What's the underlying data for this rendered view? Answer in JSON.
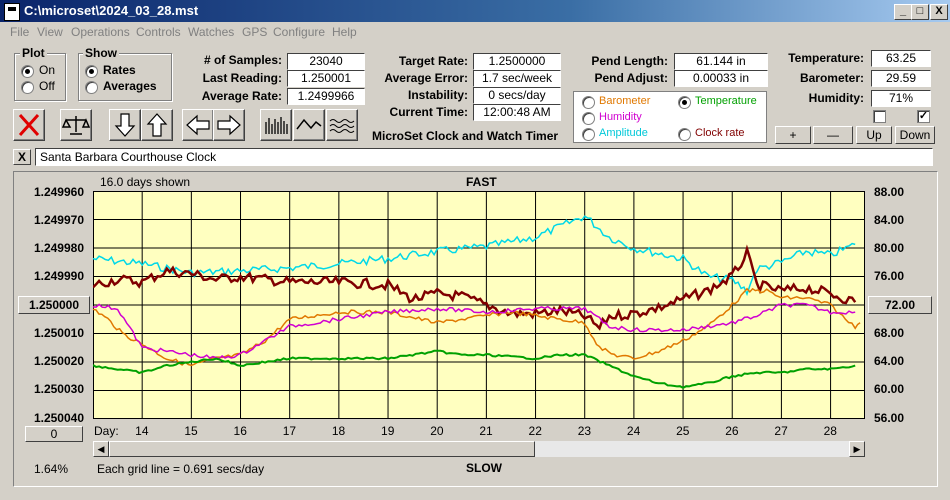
{
  "window": {
    "title": "C:\\microset\\2024_03_28.mst",
    "min": "_",
    "max": "□",
    "close": "X"
  },
  "menu": [
    "File",
    "View",
    "Operations",
    "Controls",
    "Watches",
    "GPS",
    "Configure",
    "Help"
  ],
  "plot_group": {
    "title": "Plot",
    "on": "On",
    "off": "Off",
    "selected": "On"
  },
  "show_group": {
    "title": "Show",
    "rates": "Rates",
    "averages": "Averages",
    "selected": "Rates"
  },
  "stats": {
    "samples_label": "# of Samples:",
    "samples": "23040",
    "last_label": "Last Reading:",
    "last": "1.250001",
    "avg_label": "Average Rate:",
    "avg": "1.2499966",
    "target_label": "Target Rate:",
    "target": "1.2500000",
    "avgerr_label": "Average Error:",
    "avgerr": "1.7 sec/week",
    "instab_label": "Instability:",
    "instab": "0 secs/day",
    "time_label": "Current Time:",
    "time": "12:00:48 AM",
    "pendlen_label": "Pend Length:",
    "pendlen": "61.144 in",
    "pendadj_label": "Pend Adjust:",
    "pendadj": "0.00033 in",
    "temp_label": "Temperature:",
    "temp": "63.25",
    "baro_label": "Barometer:",
    "baro": "29.59",
    "hum_label": "Humidity:",
    "hum": "71%"
  },
  "app_caption": "MicroSet Clock and Watch Timer",
  "legend": {
    "barometer": "Barometer",
    "temperature": "Temperature",
    "humidity": "Humidity",
    "amplitude": "Amplitude",
    "clockrate": "Clock rate",
    "selected": "Temperature",
    "colors": {
      "barometer": "#e07800",
      "temperature": "#00a000",
      "humidity": "#d000d0",
      "amplitude": "#00c8d8",
      "clockrate": "#800000"
    }
  },
  "small_buttons": {
    "plus": "+",
    "minus": "—",
    "up": "Up",
    "down": "Down"
  },
  "clock_name": "Santa Barbara Courthouse Clock",
  "close_x": "X",
  "chart_header": {
    "days_shown": "16.0 days shown",
    "fast": "FAST",
    "slow": "SLOW",
    "grid_note": "Each grid line = 0.691 secs/day",
    "percent": "1.64%",
    "day_label": "Day:",
    "zero_button": "0"
  },
  "chart_data": {
    "type": "line",
    "xlabel": "Day:",
    "x_ticks": [
      "14",
      "15",
      "16",
      "17",
      "18",
      "19",
      "20",
      "21",
      "22",
      "23",
      "24",
      "25",
      "26",
      "27",
      "28"
    ],
    "xlim": [
      13.0,
      28.7
    ],
    "y_left_ticks": [
      "1.249960",
      "1.249970",
      "1.249980",
      "1.249990",
      "1.250000",
      "1.250010",
      "1.250020",
      "1.250030",
      "1.250040"
    ],
    "y_left_selected": "1.250000",
    "ylim_left": [
      1.24996,
      1.25004
    ],
    "y_right_ticks": [
      "88.00",
      "84.00",
      "80.00",
      "76.00",
      "72.00",
      "68.00",
      "64.00",
      "60.00",
      "56.00"
    ],
    "y_right_selected": "72.00",
    "ylim_right": [
      56,
      88
    ],
    "series": [
      {
        "name": "Amplitude",
        "color": "#00d8e8",
        "x": [
          13,
          14,
          15,
          16,
          17,
          18,
          19,
          20,
          21,
          22,
          22.5,
          23,
          23.5,
          24,
          25,
          25.5,
          26,
          26.3,
          26.5,
          27,
          27.5,
          28,
          28.5
        ],
        "values": [
          78.5,
          77.8,
          76.5,
          76.8,
          77.2,
          77.8,
          78.5,
          79.5,
          80.2,
          81.5,
          83,
          84.5,
          81.5,
          80,
          78.5,
          76,
          75.5,
          74,
          77,
          78,
          79.5,
          79,
          80.5
        ]
      },
      {
        "name": "Clock rate",
        "color": "#800000",
        "x": [
          13,
          13.5,
          14,
          14.5,
          15,
          15.5,
          16,
          17,
          18,
          19,
          19.5,
          20,
          20.5,
          21,
          21.5,
          22,
          22.5,
          23,
          23.3,
          23.5,
          24,
          24.5,
          25,
          25.5,
          26,
          26.3,
          26.5,
          27,
          27.5,
          28,
          28.5
        ],
        "values": [
          1.249993,
          1.249991,
          1.249992,
          1.249988,
          1.249989,
          1.249991,
          1.24999,
          1.249992,
          1.249992,
          1.249993,
          1.249998,
          1.249996,
          1.249997,
          1.25,
          1.250003,
          1.250003,
          1.250002,
          1.250004,
          1.250008,
          1.250004,
          1.250003,
          1.250001,
          1.249998,
          1.249995,
          1.24999,
          1.249982,
          1.249993,
          1.249995,
          1.249994,
          1.249996,
          1.249999
        ]
      },
      {
        "name": "Barometer",
        "color": "#e07800",
        "x": [
          13,
          13.3,
          13.6,
          14,
          14.5,
          15,
          15.5,
          16,
          16.5,
          17,
          18,
          19,
          20,
          21,
          21.5,
          22,
          22.5,
          23,
          23.3,
          23.6,
          24,
          24.5,
          25,
          25.5,
          26,
          26.3,
          26.7,
          27,
          27.5,
          28,
          28.3,
          28.5,
          28.6
        ],
        "values": [
          71.5,
          70,
          68,
          66.5,
          64.5,
          63.5,
          64.5,
          65,
          67,
          70,
          71,
          71,
          69.5,
          70.5,
          71,
          70.5,
          70,
          69.5,
          66,
          65,
          64.5,
          65.5,
          67,
          69,
          72,
          74,
          74,
          73,
          73,
          72,
          70,
          69,
          69.5
        ]
      },
      {
        "name": "Humidity",
        "color": "#d000d0",
        "x": [
          13,
          13.5,
          14,
          14.5,
          15,
          15.5,
          16,
          17,
          18,
          19,
          20,
          21,
          22,
          23,
          23.3,
          23.5,
          24,
          25,
          25.5,
          26,
          26.5,
          27,
          27.5,
          28,
          28.5
        ],
        "values": [
          72,
          71.5,
          66,
          65.5,
          65,
          64.5,
          65,
          69,
          70,
          71,
          71.5,
          71,
          71.5,
          71.5,
          70,
          69,
          68.5,
          68.5,
          69,
          69.5,
          70.5,
          72,
          72,
          71,
          71
        ]
      },
      {
        "name": "Temperature",
        "color": "#00a000",
        "x": [
          13,
          13.5,
          14,
          14.5,
          15,
          15.5,
          16,
          17,
          18,
          19,
          19.5,
          20,
          20.5,
          21,
          22,
          22.5,
          23,
          23.5,
          24,
          24.5,
          25,
          25.5,
          26,
          26.5,
          27,
          27.5,
          28,
          28.5
        ],
        "values": [
          63.5,
          63,
          62.5,
          63.5,
          64,
          64.5,
          63.5,
          64.5,
          64.5,
          64.5,
          65,
          65.5,
          65,
          65,
          64.5,
          65,
          65,
          63.5,
          62,
          61,
          60.5,
          61,
          62,
          62.5,
          62.5,
          63,
          63,
          63.5
        ]
      }
    ]
  }
}
